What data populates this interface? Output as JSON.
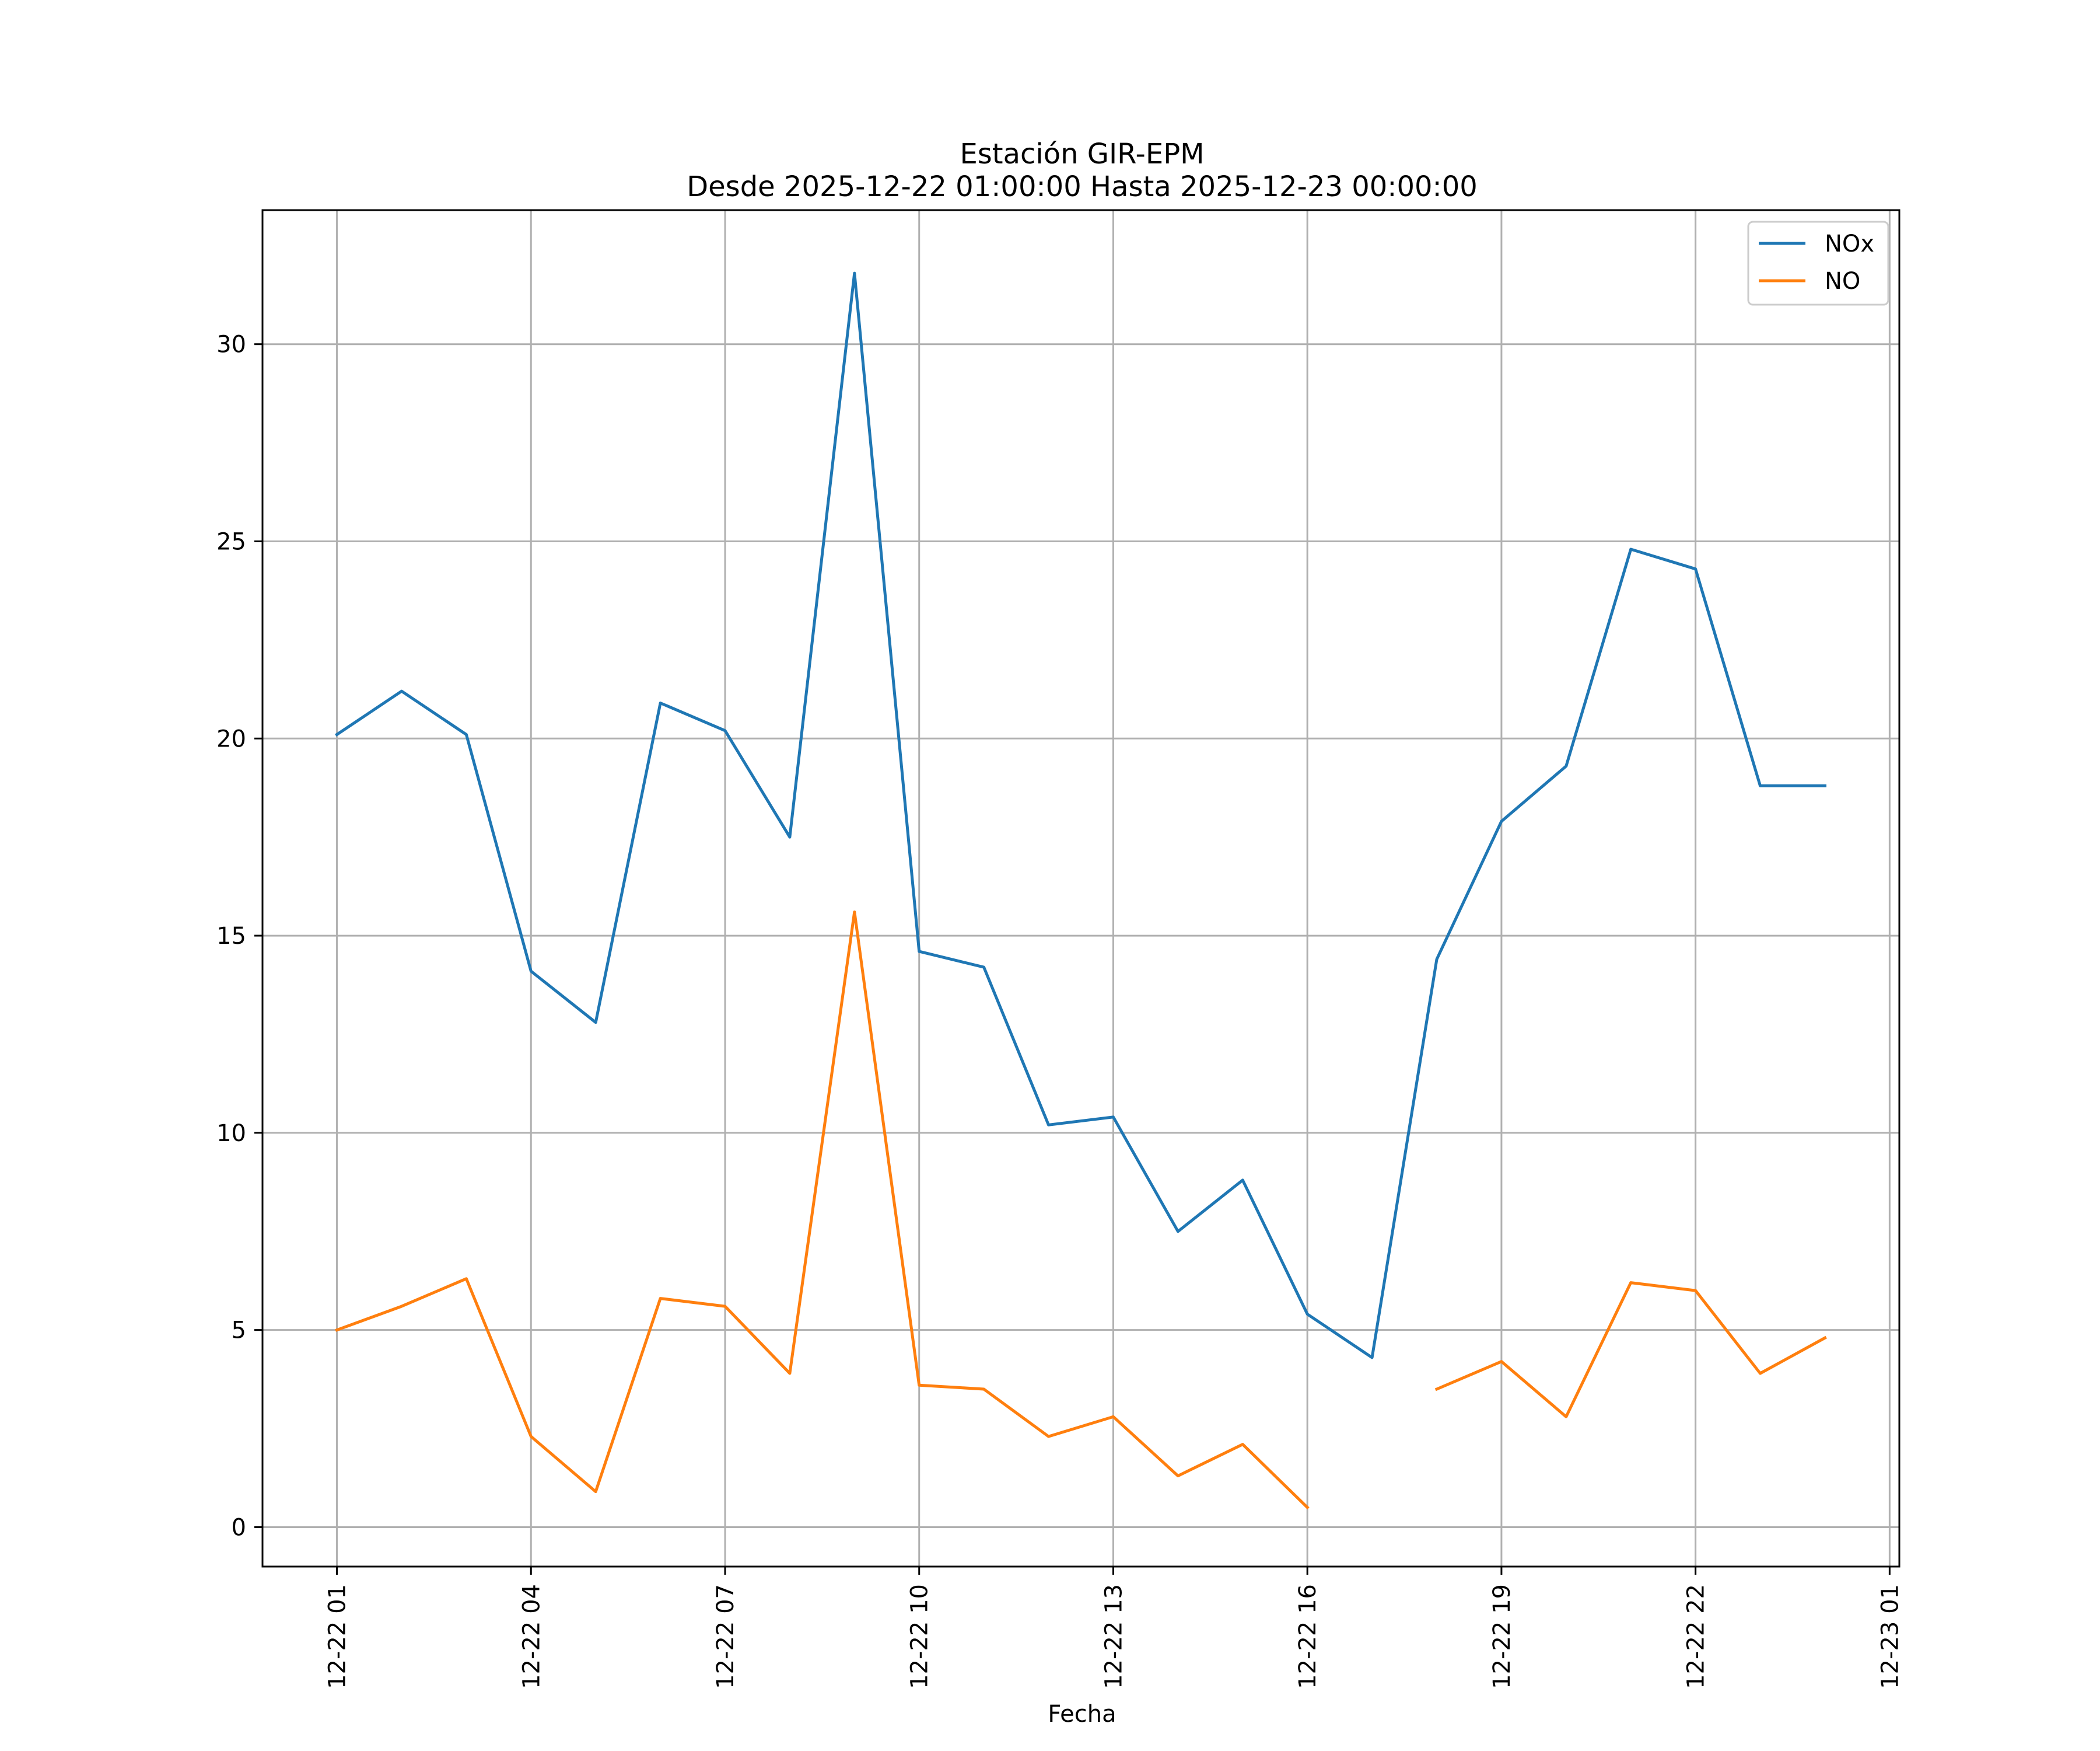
{
  "chart_data": {
    "type": "line",
    "title_line1": "Estación GIR-EPM",
    "title_line2": "Desde 2025-12-22 01:00:00 Hasta 2025-12-23 00:00:00",
    "xlabel": "Fecha",
    "ylabel": "",
    "x_hours": [
      1,
      2,
      3,
      4,
      5,
      6,
      7,
      8,
      9,
      10,
      11,
      12,
      13,
      14,
      15,
      16,
      17,
      18,
      19,
      20,
      21,
      22,
      23,
      24
    ],
    "x_range_hours": [
      -0.15,
      25.15
    ],
    "ylim": [
      -1.0,
      33.4
    ],
    "y_ticks": [
      0,
      5,
      10,
      15,
      20,
      25,
      30
    ],
    "x_ticks": [
      {
        "hour": 1,
        "label": "12-22 01"
      },
      {
        "hour": 4,
        "label": "12-22 04"
      },
      {
        "hour": 7,
        "label": "12-22 07"
      },
      {
        "hour": 10,
        "label": "12-22 10"
      },
      {
        "hour": 13,
        "label": "12-22 13"
      },
      {
        "hour": 16,
        "label": "12-22 16"
      },
      {
        "hour": 19,
        "label": "12-22 19"
      },
      {
        "hour": 22,
        "label": "12-22 22"
      },
      {
        "hour": 25,
        "label": "12-23 01"
      }
    ],
    "grid": true,
    "legend_position": "top-right",
    "series": [
      {
        "name": "NOx",
        "color": "#1f77b4",
        "values": [
          20.1,
          21.2,
          20.1,
          14.1,
          12.8,
          20.9,
          20.2,
          17.5,
          31.8,
          14.6,
          14.2,
          10.2,
          10.4,
          7.5,
          8.8,
          5.4,
          4.3,
          14.4,
          17.9,
          19.3,
          24.8,
          24.3,
          18.8,
          18.8
        ]
      },
      {
        "name": "NO",
        "color": "#ff7f0e",
        "values": [
          5.0,
          5.6,
          6.3,
          2.3,
          0.9,
          5.8,
          5.6,
          3.9,
          15.6,
          3.6,
          3.5,
          2.3,
          2.8,
          1.3,
          2.1,
          0.5,
          null,
          3.5,
          4.2,
          2.8,
          6.2,
          6.0,
          3.9,
          4.8
        ]
      }
    ]
  }
}
